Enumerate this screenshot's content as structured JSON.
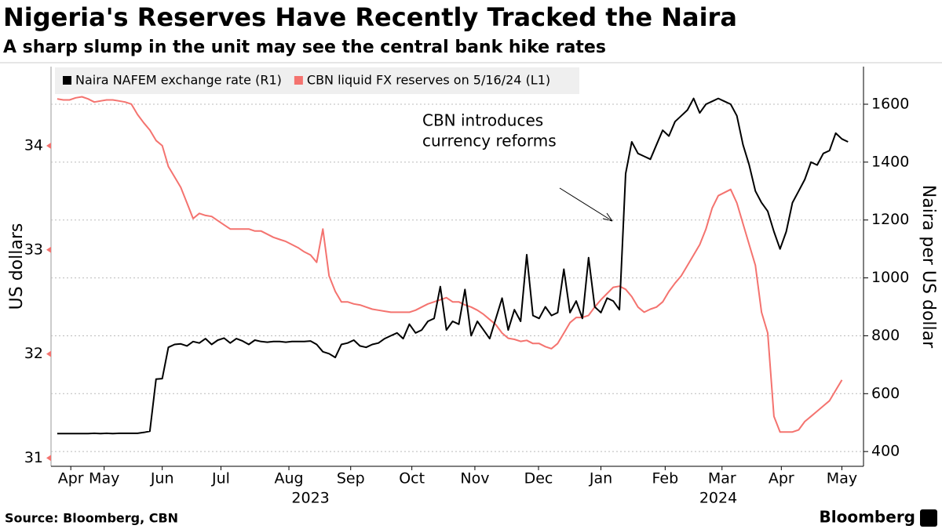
{
  "chart_data": {
    "type": "line",
    "title": "Nigeria's Reserves Have Recently Tracked the Naira",
    "subtitle": "A sharp slump in the unit may see the central bank hike rates",
    "y_label": "US dollars",
    "y2_label": "Naira per US dollar",
    "source": "Source: Bloomberg, CBN",
    "brand": "Bloomberg",
    "annotation": [
      "CBN introduces",
      "currency reforms"
    ],
    "grid": true,
    "x": [
      0.8,
      0.9,
      1.0,
      1.1,
      1.2,
      1.3,
      1.4,
      1.5,
      1.6,
      1.7,
      1.8,
      1.9,
      2.0,
      2.1,
      2.2,
      2.3,
      2.4,
      2.5,
      2.6,
      2.7,
      2.8,
      2.9,
      3.0,
      3.1,
      3.2,
      3.3,
      3.4,
      3.5,
      3.6,
      3.7,
      3.8,
      3.9,
      4.0,
      4.1,
      4.2,
      4.3,
      4.4,
      4.5,
      4.6,
      4.7,
      4.8,
      4.9,
      5.0,
      5.1,
      5.2,
      5.3,
      5.4,
      5.5,
      5.6,
      5.7,
      5.8,
      5.9,
      6.0,
      6.1,
      6.2,
      6.3,
      6.4,
      6.5,
      6.6,
      6.7,
      6.8,
      6.9,
      7.0,
      7.1,
      7.2,
      7.3,
      7.4,
      7.5,
      7.6,
      7.7,
      7.8,
      7.9,
      8.0,
      8.1,
      8.2,
      8.3,
      8.4,
      8.5,
      8.6,
      8.7,
      8.8,
      8.9,
      9.0,
      9.1,
      9.2,
      9.3,
      9.4,
      9.5,
      9.6,
      9.7,
      9.8,
      9.9,
      10.0,
      10.1,
      10.2,
      10.3,
      10.4,
      10.5,
      10.6,
      10.7,
      10.8,
      10.9,
      11.0,
      11.1,
      11.2,
      11.3,
      11.4,
      11.5,
      11.6,
      11.7,
      11.8,
      11.9,
      12.0,
      12.1,
      12.2,
      12.3,
      12.4,
      12.5,
      12.6,
      12.7,
      12.8,
      12.9,
      13.0,
      13.1,
      13.2,
      13.3,
      13.4,
      13.5,
      13.6
    ],
    "series": [
      {
        "name": "Naira NAFEM exchange rate (R1)",
        "color": "#000000",
        "axis": "y2",
        "values": [
          462,
          462,
          462,
          462,
          462,
          462,
          463,
          462,
          463,
          462,
          463,
          463,
          463,
          463,
          466,
          470,
          650,
          652,
          760,
          770,
          772,
          765,
          780,
          775,
          790,
          770,
          785,
          792,
          775,
          790,
          782,
          770,
          785,
          780,
          778,
          780,
          780,
          778,
          780,
          780,
          780,
          782,
          770,
          745,
          738,
          725,
          770,
          775,
          785,
          765,
          760,
          770,
          775,
          790,
          800,
          810,
          790,
          840,
          810,
          820,
          850,
          860,
          970,
          820,
          850,
          840,
          960,
          800,
          850,
          820,
          790,
          860,
          930,
          820,
          890,
          850,
          1080,
          870,
          860,
          900,
          870,
          880,
          1030,
          880,
          920,
          860,
          1070,
          900,
          880,
          930,
          920,
          890,
          1360,
          1470,
          1430,
          1420,
          1410,
          1460,
          1510,
          1490,
          1540,
          1560,
          1580,
          1620,
          1570,
          1600,
          1610,
          1620,
          1610,
          1600,
          1560,
          1460,
          1390,
          1300,
          1260,
          1230,
          1160,
          1100,
          1160,
          1260,
          1300,
          1340,
          1400,
          1390,
          1430,
          1440,
          1500,
          1480,
          1470
        ]
      },
      {
        "name": "CBN liquid FX reserves on 5/16/24 (L1)",
        "color": "#f4736f",
        "axis": "y",
        "values": [
          34.45,
          34.44,
          34.44,
          34.46,
          34.47,
          34.45,
          34.42,
          34.43,
          34.44,
          34.44,
          34.43,
          34.42,
          34.4,
          34.3,
          34.22,
          34.15,
          34.05,
          34.0,
          33.8,
          33.7,
          33.6,
          33.45,
          33.3,
          33.35,
          33.33,
          33.32,
          33.28,
          33.24,
          33.2,
          33.2,
          33.2,
          33.2,
          33.18,
          33.18,
          33.15,
          33.12,
          33.1,
          33.08,
          33.05,
          33.02,
          32.98,
          32.95,
          32.88,
          33.2,
          32.75,
          32.6,
          32.5,
          32.5,
          32.48,
          32.47,
          32.45,
          32.43,
          32.42,
          32.41,
          32.4,
          32.4,
          32.4,
          32.4,
          32.42,
          32.45,
          32.48,
          32.5,
          32.52,
          32.54,
          32.5,
          32.5,
          32.47,
          32.45,
          32.42,
          32.38,
          32.33,
          32.28,
          32.2,
          32.15,
          32.14,
          32.12,
          32.13,
          32.1,
          32.1,
          32.07,
          32.05,
          32.1,
          32.2,
          32.3,
          32.35,
          32.35,
          32.37,
          32.45,
          32.52,
          32.58,
          32.64,
          32.65,
          32.62,
          32.55,
          32.45,
          32.4,
          32.43,
          32.45,
          32.5,
          32.6,
          32.68,
          32.75,
          32.85,
          32.95,
          33.05,
          33.2,
          33.4,
          33.52,
          33.55,
          33.58,
          33.45,
          33.25,
          33.05,
          32.85,
          32.4,
          32.2,
          31.4,
          31.25,
          31.25,
          31.25,
          31.27,
          31.35,
          31.4,
          31.45,
          31.5,
          31.55,
          31.65,
          31.75,
          null
        ]
      }
    ],
    "xlim": [
      0.7,
      13.85
    ],
    "xticks": [
      {
        "value": 1.02,
        "label": "Apr"
      },
      {
        "value": 1.56,
        "label": "May"
      },
      {
        "value": 2.5,
        "label": "Jun"
      },
      {
        "value": 3.45,
        "label": "Jul"
      },
      {
        "value": 4.55,
        "label": "Aug"
      },
      {
        "value": 5.55,
        "label": "Sep"
      },
      {
        "value": 6.54,
        "label": "Oct"
      },
      {
        "value": 7.56,
        "label": "Nov"
      },
      {
        "value": 8.59,
        "label": "Dec"
      },
      {
        "value": 9.6,
        "label": "Jan"
      },
      {
        "value": 10.64,
        "label": "Feb"
      },
      {
        "value": 11.56,
        "label": "Mar"
      },
      {
        "value": 12.52,
        "label": "Apr"
      },
      {
        "value": 13.5,
        "label": "May"
      }
    ],
    "year_ticks": [
      {
        "value": 4.9,
        "label": "2023"
      },
      {
        "value": 11.5,
        "label": "2024"
      }
    ],
    "ylim": [
      30.92,
      34.76
    ],
    "yticks": [
      31,
      32,
      33,
      34
    ],
    "y2lim": [
      349,
      1730
    ],
    "y2ticks": [
      400,
      600,
      800,
      1000,
      1200,
      1400,
      1600
    ]
  }
}
